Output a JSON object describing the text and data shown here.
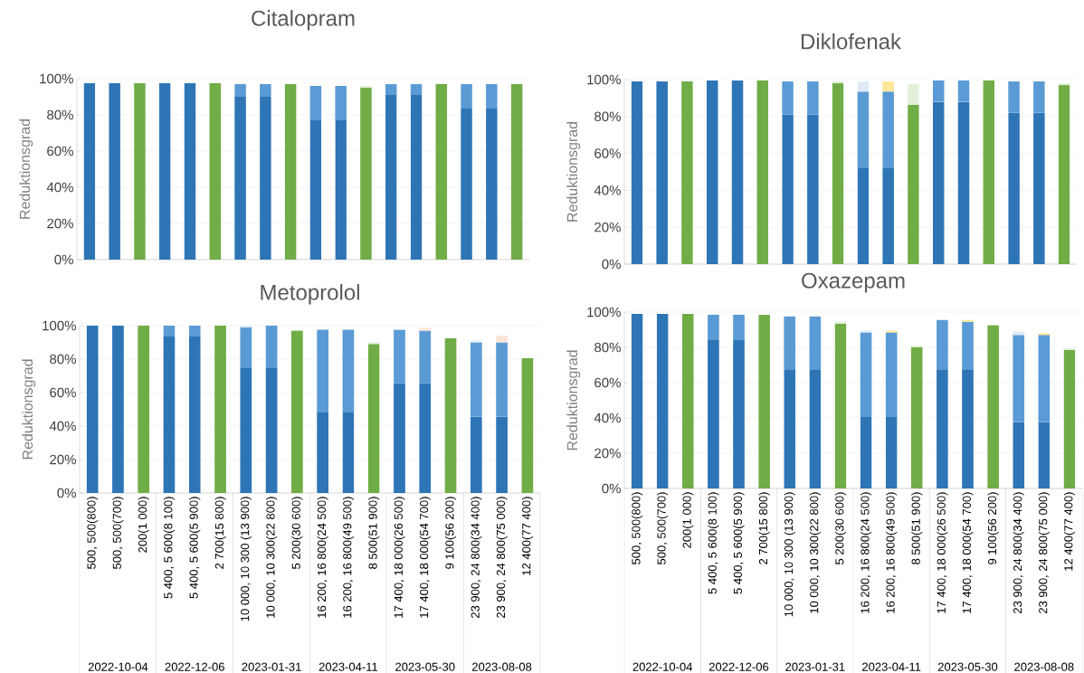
{
  "chart_data": [
    {
      "type": "bar",
      "stacked": true,
      "title": "Citalopram",
      "ylabel": "Reduktionsgrad",
      "tick_labels": "y",
      "grid": "y",
      "ylim": [
        0,
        100
      ],
      "yticks": [
        {
          "value": 0,
          "label": "0%"
        },
        {
          "value": 20,
          "label": "20%"
        },
        {
          "value": 40,
          "label": "40%"
        },
        {
          "value": 60,
          "label": "60%"
        },
        {
          "value": 80,
          "label": "80%"
        },
        {
          "value": 100,
          "label": "100%"
        }
      ],
      "categories": [
        null,
        null,
        null,
        null,
        null,
        null,
        null,
        null,
        null,
        null,
        null,
        null,
        null,
        null,
        null,
        null,
        null,
        null
      ],
      "series": [
        {
          "color": "#2e75b6",
          "values": [
            97.5,
            97.5,
            null,
            97.5,
            97.5,
            null,
            90,
            90,
            null,
            77,
            77,
            null,
            91,
            91,
            null,
            83.5,
            83.5,
            null
          ]
        },
        {
          "color": "#5b9bd5",
          "values": [
            null,
            null,
            null,
            null,
            null,
            null,
            7,
            7,
            null,
            19,
            19,
            null,
            6,
            6,
            null,
            13.5,
            13.5,
            null
          ]
        },
        {
          "color": "#70ad47",
          "values": [
            null,
            null,
            97.5,
            null,
            null,
            97.5,
            null,
            null,
            97,
            null,
            null,
            95,
            null,
            null,
            97,
            null,
            null,
            97
          ]
        },
        {
          "colors": [
            null,
            null,
            null,
            null,
            null,
            null,
            null,
            null,
            null,
            null,
            null,
            "#e2f0d9",
            null,
            null,
            null,
            null,
            null,
            null
          ],
          "values": [
            null,
            null,
            null,
            null,
            null,
            null,
            null,
            null,
            null,
            null,
            null,
            1,
            null,
            null,
            null,
            null,
            null,
            null
          ]
        }
      ]
    },
    {
      "type": "bar",
      "stacked": true,
      "title": "Diklofenak",
      "ylabel": "Reduktionsgrad",
      "tick_labels": "y",
      "grid": "y",
      "ylim": [
        0,
        100
      ],
      "yticks": [
        {
          "value": 0,
          "label": "0%"
        },
        {
          "value": 20,
          "label": "20%"
        },
        {
          "value": 40,
          "label": "40%"
        },
        {
          "value": 60,
          "label": "60%"
        },
        {
          "value": 80,
          "label": "80%"
        },
        {
          "value": 100,
          "label": "100%"
        }
      ],
      "categories": [
        null,
        null,
        null,
        null,
        null,
        null,
        null,
        null,
        null,
        null,
        null,
        null,
        null,
        null,
        null,
        null,
        null,
        null
      ],
      "series": [
        {
          "color": "#2e75b6",
          "values": [
            99,
            99,
            null,
            99.5,
            99.5,
            null,
            81,
            81,
            null,
            52,
            52,
            null,
            88,
            88,
            null,
            82,
            82,
            null
          ]
        },
        {
          "color": "#5b9bd5",
          "values": [
            null,
            null,
            null,
            null,
            null,
            null,
            18,
            18,
            null,
            41.5,
            41.5,
            null,
            11.5,
            11.5,
            null,
            17,
            17,
            null
          ]
        },
        {
          "color": "#70ad47",
          "values": [
            null,
            null,
            99,
            null,
            null,
            99.5,
            null,
            null,
            98,
            null,
            null,
            86.5,
            null,
            null,
            99.5,
            null,
            null,
            97
          ]
        },
        {
          "colors": [
            null,
            null,
            null,
            null,
            null,
            null,
            null,
            null,
            "#e2f0d9",
            "#deebf7",
            "#ffe699",
            "#e2f0d9",
            null,
            null,
            null,
            null,
            null,
            "#e2f0d9"
          ],
          "values": [
            null,
            null,
            null,
            null,
            null,
            null,
            null,
            null,
            1,
            5.5,
            5.5,
            11,
            null,
            null,
            null,
            null,
            null,
            1
          ]
        }
      ]
    },
    {
      "type": "bar",
      "stacked": true,
      "title": "Metoprolol",
      "ylabel": "Reduktionsgrad",
      "grid": "y",
      "ylim": [
        0,
        100
      ],
      "yticks": [
        {
          "value": 0,
          "label": "0%"
        },
        {
          "value": 20,
          "label": "20%"
        },
        {
          "value": 40,
          "label": "40%"
        },
        {
          "value": 60,
          "label": "60%"
        },
        {
          "value": 80,
          "label": "80%"
        },
        {
          "value": 100,
          "label": "100%"
        }
      ],
      "categories": [
        "500, 500(800)",
        "500, 500(700)",
        "200(1 000)",
        "5 400, 5 600(8 100)",
        "5 400, 5 600(5 900)",
        "2 700(15 800)",
        "10 000, 10 300 (13 900)",
        "10 000, 10 300(22 800)",
        "5 200(30 600)",
        "16 200, 16 800(24 500)",
        "16 200, 16 800(49 500)",
        "8 500(51 900)",
        "17 400, 18 000(26 500)",
        "17 400, 18 000(54 700)",
        "9 100(56 200)",
        "23 900, 24 800(34 400)",
        "23 900, 24 800(75 000)",
        "12 400(77 400)"
      ],
      "annotations": [
        "2022-10-04",
        "2022-12-06",
        "2023-01-31",
        "2023-04-11",
        "2023-05-30",
        "2023-08-08"
      ],
      "series": [
        {
          "color": "#2e75b6",
          "values": [
            100,
            100,
            null,
            93.5,
            93.5,
            null,
            75,
            75,
            null,
            48.5,
            48.5,
            null,
            65.5,
            65.5,
            null,
            45.5,
            45.5,
            null
          ]
        },
        {
          "color": "#5b9bd5",
          "values": [
            null,
            null,
            null,
            6.5,
            6.5,
            null,
            24,
            25,
            null,
            49,
            49,
            null,
            32,
            31.5,
            null,
            44.5,
            44.5,
            null
          ]
        },
        {
          "color": "#70ad47",
          "values": [
            null,
            null,
            100,
            null,
            null,
            100,
            null,
            null,
            97,
            null,
            null,
            89,
            null,
            null,
            92.5,
            null,
            null,
            80.5
          ]
        },
        {
          "colors": [
            null,
            null,
            null,
            null,
            null,
            null,
            "#deebf7",
            null,
            null,
            null,
            null,
            "#e2f0d9",
            null,
            "#fbe5d6",
            null,
            "#deebf7",
            "#fbe5d6",
            null
          ],
          "values": [
            null,
            null,
            null,
            null,
            null,
            null,
            1,
            null,
            null,
            null,
            null,
            1,
            null,
            1.5,
            null,
            1,
            4,
            null
          ]
        }
      ]
    },
    {
      "type": "bar",
      "stacked": true,
      "title": "Oxazepam",
      "ylabel": "Reduktionsgrad",
      "grid": "y",
      "ylim": [
        0,
        100
      ],
      "yticks": [
        {
          "value": 0,
          "label": "0%"
        },
        {
          "value": 20,
          "label": "20%"
        },
        {
          "value": 40,
          "label": "40%"
        },
        {
          "value": 60,
          "label": "60%"
        },
        {
          "value": 80,
          "label": "80%"
        },
        {
          "value": 100,
          "label": "100%"
        }
      ],
      "categories": [
        "500, 500(800)",
        "500, 500(700)",
        "200(1 000)",
        "5 400, 5 600(8 100)",
        "5 400, 5 600(5 900)",
        "2 700(15 800)",
        "10 000, 10 300 (13 900)",
        "10 000, 10 300(22 800)",
        "5 200(30 600)",
        "16 200, 16 800(24 500)",
        "16 200, 16 800(49 500)",
        "8 500(51 900)",
        "17 400, 18 000(26 500)",
        "17 400, 18 000(54 700)",
        "9 100(56 200)",
        "23 900, 24 800(34 400)",
        "23 900, 24 800(75 000)",
        "12 400(77 400)"
      ],
      "annotations": [
        "2022-10-04",
        "2022-12-06",
        "2023-01-31",
        "2023-04-11",
        "2023-05-30",
        "2023-08-08"
      ],
      "series": [
        {
          "color": "#2e75b6",
          "values": [
            99,
            99,
            null,
            84.5,
            84.5,
            null,
            67.5,
            67.5,
            null,
            40.5,
            40.5,
            null,
            67.5,
            67.5,
            null,
            37.5,
            37.5,
            null
          ]
        },
        {
          "color": "#5b9bd5",
          "values": [
            null,
            null,
            null,
            14,
            14,
            null,
            30,
            30,
            null,
            48,
            48,
            null,
            28,
            27,
            null,
            49.5,
            49.5,
            null
          ]
        },
        {
          "color": "#70ad47",
          "values": [
            null,
            null,
            99,
            null,
            null,
            98.5,
            null,
            null,
            93.5,
            null,
            null,
            80,
            null,
            null,
            92.5,
            null,
            null,
            78.5
          ]
        },
        {
          "colors": [
            null,
            null,
            null,
            null,
            null,
            null,
            null,
            null,
            "#e2f0d9",
            "#deebf7",
            "#ffe699",
            "#e2f0d9",
            null,
            "#ffe699",
            null,
            "#deebf7",
            "#ffe699",
            "#e2f0d9"
          ],
          "values": [
            null,
            null,
            null,
            null,
            null,
            null,
            null,
            null,
            1,
            1,
            1,
            1,
            null,
            1,
            null,
            2,
            1,
            1
          ]
        }
      ]
    }
  ]
}
